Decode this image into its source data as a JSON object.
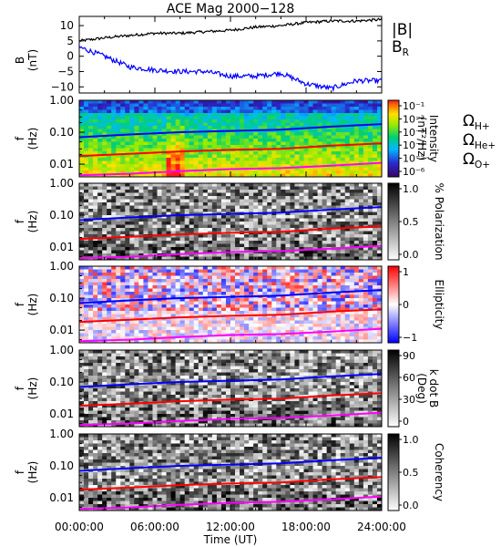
{
  "title": "ACE Mag 2000−128",
  "x_axis": {
    "label": "Time (UT)",
    "ticks": [
      "00:00:00",
      "06:00:00",
      "12:00:00",
      "18:00:00",
      "24:00:00"
    ],
    "range_hours": [
      0,
      24
    ]
  },
  "field_panel": {
    "ylabel": "B",
    "yunit": "(nT)",
    "yticks": [
      "10",
      "5",
      "0",
      "−5",
      "−10"
    ],
    "legend": [
      {
        "text": "|B|",
        "sub": "",
        "color": "#000000"
      },
      {
        "text": "B",
        "sub": "R",
        "color": "#0000ff"
      }
    ]
  },
  "freq_axis": {
    "ylabel": "f",
    "yunit": "(Hz)",
    "ticks": [
      "1.00",
      "0.10",
      "0.01"
    ]
  },
  "cyclotron_labels": [
    {
      "text": "Ω",
      "sub": "H+",
      "color": "#0000ff"
    },
    {
      "text": "Ω",
      "sub": "He+",
      "color": "#ff0000"
    },
    {
      "text": "Ω",
      "sub": "O+",
      "color": "#ff00ff"
    }
  ],
  "panels": [
    {
      "colorbar_label": "Intensity",
      "colorbar_unit": "(nT²/Hz)",
      "colorbar_ticks": [
        "10⁻¹",
        "10⁻²",
        "10⁻³",
        "10⁻⁴",
        "10⁻⁵",
        "10⁻⁶"
      ]
    },
    {
      "colorbar_label": "% Polarization",
      "colorbar_unit": "",
      "colorbar_ticks": [
        "1.0",
        "0.5",
        "0.0"
      ]
    },
    {
      "colorbar_label": "Ellipticity",
      "colorbar_unit": "",
      "colorbar_ticks": [
        "1",
        "0",
        "−1"
      ]
    },
    {
      "colorbar_label": "k dot B",
      "colorbar_unit": "(Deg)",
      "colorbar_ticks": [
        "90",
        "60",
        "30",
        "0"
      ]
    },
    {
      "colorbar_label": "Coherency",
      "colorbar_unit": "",
      "colorbar_ticks": [
        "1.0",
        "0.5",
        "0.0"
      ]
    }
  ],
  "chart_data": [
    {
      "type": "line",
      "title": "ACE Mag 2000−128",
      "xlabel": "Time (UT)",
      "ylabel": "B (nT)",
      "xlim": [
        0,
        24
      ],
      "ylim": [
        -12,
        13
      ],
      "x": [
        0,
        2,
        4,
        6,
        8,
        10,
        12,
        14,
        16,
        18,
        20,
        22,
        24
      ],
      "series": [
        {
          "name": "|B|",
          "color": "#000000",
          "values": [
            5,
            6,
            6.8,
            7.5,
            7.5,
            8,
            8.5,
            9.5,
            10,
            11,
            11.5,
            11.5,
            12
          ]
        },
        {
          "name": "B_R",
          "color": "#0000ff",
          "values": [
            3,
            0,
            -3.5,
            -4.5,
            -5,
            -5,
            -6.5,
            -6.5,
            -5.5,
            -9,
            -10.5,
            -8,
            -8
          ]
        }
      ]
    },
    {
      "type": "heatmap",
      "xlabel": "Time (UT)",
      "ylabel": "f (Hz)",
      "yscale": "log",
      "ylim": [
        0.004,
        1.0
      ],
      "xlim": [
        0,
        24
      ],
      "x": [
        0,
        4,
        8,
        12,
        16,
        20,
        24
      ],
      "series": [
        {
          "name": "ΩH+",
          "color": "#0000ff",
          "values": [
            0.07,
            0.085,
            0.1,
            0.11,
            0.12,
            0.15,
            0.18
          ]
        },
        {
          "name": "ΩHe+",
          "color": "#ff0000",
          "values": [
            0.018,
            0.021,
            0.025,
            0.028,
            0.03,
            0.038,
            0.045
          ]
        },
        {
          "name": "ΩO+",
          "color": "#ff00ff",
          "values": [
            0.0045,
            0.005,
            0.006,
            0.007,
            0.0075,
            0.009,
            0.011
          ]
        }
      ]
    }
  ]
}
